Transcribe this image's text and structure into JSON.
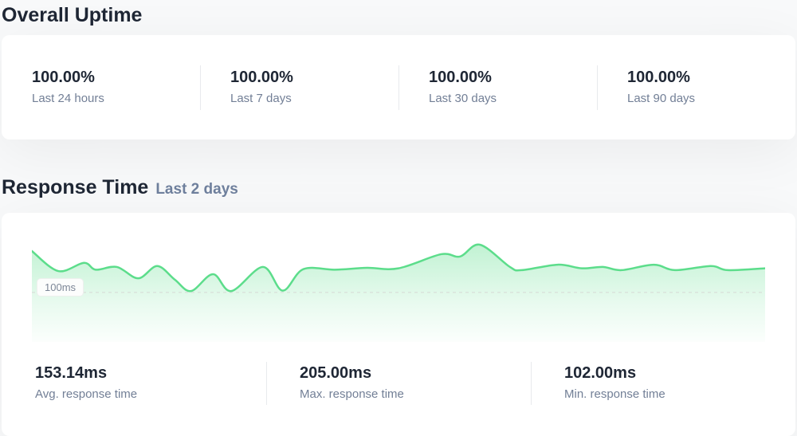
{
  "overall_uptime": {
    "title": "Overall Uptime",
    "stats": [
      {
        "value": "100.00%",
        "label": "Last 24 hours"
      },
      {
        "value": "100.00%",
        "label": "Last 7 days"
      },
      {
        "value": "100.00%",
        "label": "Last 30 days"
      },
      {
        "value": "100.00%",
        "label": "Last 90 days"
      }
    ]
  },
  "response_time": {
    "title": "Response Time",
    "subtitle": "Last 2 days",
    "stats": [
      {
        "value": "153.14ms",
        "label": "Avg. response time"
      },
      {
        "value": "205.00ms",
        "label": "Max. response time"
      },
      {
        "value": "102.00ms",
        "label": "Min. response time"
      }
    ]
  },
  "chart_data": {
    "type": "area",
    "title": "Response Time (Last 2 days)",
    "ylabel": "ms",
    "ylim": [
      -9,
      219
    ],
    "grid": "single dashed horizontal gridline",
    "gridline": {
      "value": 100,
      "label": "100ms"
    },
    "avg_ms": 153.14,
    "max_ms": 205.0,
    "min_ms": 102.0,
    "points": [
      {
        "x": 0.0,
        "ms": 191
      },
      {
        "x": 0.036,
        "ms": 147
      },
      {
        "x": 0.071,
        "ms": 165
      },
      {
        "x": 0.087,
        "ms": 150
      },
      {
        "x": 0.116,
        "ms": 156
      },
      {
        "x": 0.145,
        "ms": 131
      },
      {
        "x": 0.171,
        "ms": 158
      },
      {
        "x": 0.195,
        "ms": 128
      },
      {
        "x": 0.217,
        "ms": 103
      },
      {
        "x": 0.247,
        "ms": 140
      },
      {
        "x": 0.272,
        "ms": 103
      },
      {
        "x": 0.315,
        "ms": 156
      },
      {
        "x": 0.342,
        "ms": 104
      },
      {
        "x": 0.37,
        "ms": 151
      },
      {
        "x": 0.413,
        "ms": 150
      },
      {
        "x": 0.457,
        "ms": 154
      },
      {
        "x": 0.5,
        "ms": 153
      },
      {
        "x": 0.558,
        "ms": 184
      },
      {
        "x": 0.584,
        "ms": 179
      },
      {
        "x": 0.611,
        "ms": 205
      },
      {
        "x": 0.652,
        "ms": 156
      },
      {
        "x": 0.668,
        "ms": 149
      },
      {
        "x": 0.717,
        "ms": 161
      },
      {
        "x": 0.75,
        "ms": 153
      },
      {
        "x": 0.779,
        "ms": 156
      },
      {
        "x": 0.804,
        "ms": 149
      },
      {
        "x": 0.848,
        "ms": 161
      },
      {
        "x": 0.877,
        "ms": 149
      },
      {
        "x": 0.926,
        "ms": 158
      },
      {
        "x": 0.949,
        "ms": 149
      },
      {
        "x": 1.0,
        "ms": 153
      }
    ]
  },
  "colors": {
    "accent_green": "#5cdd8b",
    "area_fill_top": "rgba(92,221,139,0.38)",
    "area_fill_bottom": "rgba(92,221,139,0.02)",
    "gridline": "#d6d9d6",
    "heading": "#1e2634",
    "label": "#727f96",
    "subtitle": "#6e7f9c",
    "divider": "#e8eaed",
    "card_bg": "#ffffff",
    "page_bg": "#f8f9fa"
  }
}
